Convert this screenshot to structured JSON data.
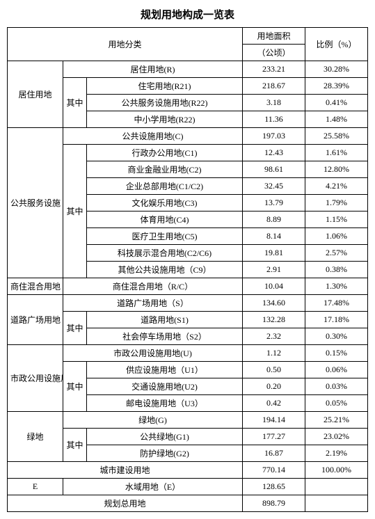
{
  "title": "规划用地构成一览表",
  "header": {
    "cat": "用地分类",
    "area": "用地面积",
    "area_unit": "（公顷）",
    "ratio": "比例（%）"
  },
  "sub_label": "其中",
  "groups": [
    {
      "name": "居住用地",
      "head": {
        "label": "居住用地(R)",
        "area": "233.21",
        "ratio": "30.28%"
      },
      "rows": [
        {
          "label": "住宅用地(R21)",
          "area": "218.67",
          "ratio": "28.39%"
        },
        {
          "label": "公共服务设施用地(R22)",
          "area": "3.18",
          "ratio": "0.41%"
        },
        {
          "label": "中小学用地(R22)",
          "area": "11.36",
          "ratio": "1.48%"
        }
      ]
    },
    {
      "name": "公共服务设施",
      "head": {
        "label": "公共设施用地(C)",
        "area": "197.03",
        "ratio": "25.58%"
      },
      "rows": [
        {
          "label": "行政办公用地(C1)",
          "area": "12.43",
          "ratio": "1.61%"
        },
        {
          "label": "商业金融业用地(C2)",
          "area": "98.61",
          "ratio": "12.80%"
        },
        {
          "label": "企业总部用地(C1/C2)",
          "area": "32.45",
          "ratio": "4.21%"
        },
        {
          "label": "文化娱乐用地(C3)",
          "area": "13.79",
          "ratio": "1.79%"
        },
        {
          "label": "体育用地(C4)",
          "area": "8.89",
          "ratio": "1.15%"
        },
        {
          "label": "医疗卫生用地(C5)",
          "area": "8.14",
          "ratio": "1.06%"
        },
        {
          "label": "科技展示混合用地(C2/C6)",
          "area": "19.81",
          "ratio": "2.57%"
        },
        {
          "label": "其他公共设施用地（C9）",
          "area": "2.91",
          "ratio": "0.38%"
        }
      ]
    },
    {
      "name": "商住混合用地",
      "single": {
        "label": "商住混合用地（R/C）",
        "area": "10.04",
        "ratio": "1.30%"
      }
    },
    {
      "name": "道路广场用地",
      "head": {
        "label": "道路广场用地（S）",
        "area": "134.60",
        "ratio": "17.48%"
      },
      "rows": [
        {
          "label": "道路用地(S1)",
          "area": "132.28",
          "ratio": "17.18%"
        },
        {
          "label": "社会停车场用地（S2）",
          "area": "2.32",
          "ratio": "0.30%"
        }
      ]
    },
    {
      "name": "市政公用设施用地",
      "head": {
        "label": "市政公用设施用地(U)",
        "area": "1.12",
        "ratio": "0.15%"
      },
      "rows": [
        {
          "label": "供应设施用地（U1）",
          "area": "0.50",
          "ratio": "0.06%"
        },
        {
          "label": "交通设施用地(U2)",
          "area": "0.20",
          "ratio": "0.03%"
        },
        {
          "label": "邮电设施用地（U3）",
          "area": "0.42",
          "ratio": "0.05%"
        }
      ]
    },
    {
      "name": "绿地",
      "head": {
        "label": "绿地(G)",
        "area": "194.14",
        "ratio": "25.21%"
      },
      "rows": [
        {
          "label": "公共绿地(G1)",
          "area": "177.27",
          "ratio": "23.02%"
        },
        {
          "label": "防护绿地(G2)",
          "area": "16.87",
          "ratio": "2.19%"
        }
      ]
    }
  ],
  "city_total": {
    "label": "城市建设用地",
    "area": "770.14",
    "ratio": "100.00%"
  },
  "e_row": {
    "name": "E",
    "label": "水域用地（E）",
    "area": "128.65"
  },
  "plan_total": {
    "label": "规划总用地",
    "area": "898.79"
  }
}
